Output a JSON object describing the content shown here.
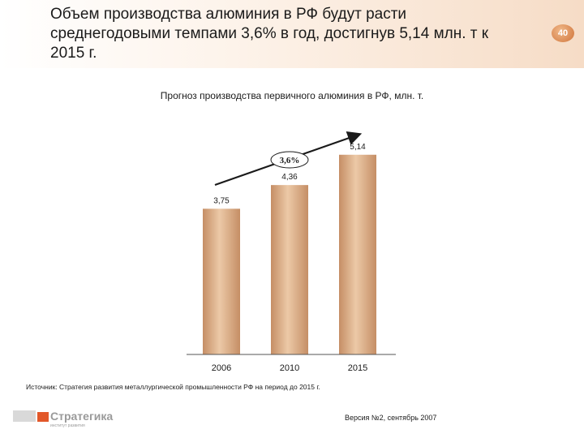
{
  "slide": {
    "title": "Объем производства алюминия в РФ будут расти среднегодовыми темпами 3,6% в год, достигнув 5,14 млн. т к 2015 г.",
    "page_number": "40"
  },
  "chart_data": {
    "type": "bar",
    "title": "Прогноз производства первичного алюминия в РФ, млн. т.",
    "categories": [
      "2006",
      "2010",
      "2015"
    ],
    "values": [
      3.75,
      4.36,
      5.14
    ],
    "value_labels": [
      "3,75",
      "4,36",
      "5,14"
    ],
    "ylim": [
      0,
      6.2
    ],
    "growth_annotation": "3,6%",
    "grid": false,
    "bar_color": "#d7a57c"
  },
  "source_note": "Источник: Стратегия развития металлургической промышленности РФ на период до 2015 г.",
  "footer": {
    "logo_text": "Стратегика",
    "logo_subtext": "институт развития",
    "version": "Версия №2, сентябрь 2007"
  },
  "colors": {
    "accent": "#e2582a",
    "bar_light": "#e8c4a2",
    "bar_dark": "#c58e65",
    "header_gradient": "#f6dcc6"
  }
}
